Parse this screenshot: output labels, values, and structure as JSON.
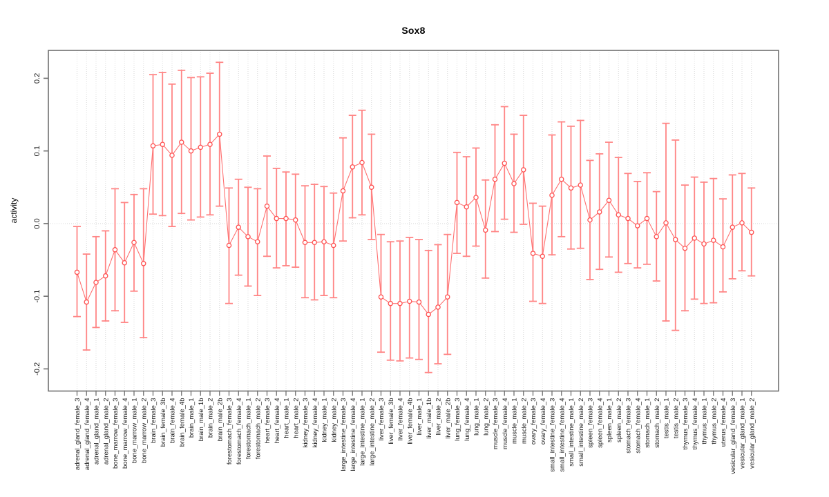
{
  "page": {
    "title": "Sox8"
  },
  "chart_data": {
    "type": "scatter",
    "subtype": "points_with_error_bars",
    "title": "Sox8",
    "xlabel": "",
    "ylabel": "activity",
    "legend": "none",
    "grid": "dotted vertical line per category; dotted horizontal line at 0",
    "ylim": [
      -0.2305,
      0.2384
    ],
    "yticks": [
      -0.2,
      -0.1,
      0.0,
      0.1,
      0.2
    ],
    "point_marker": "open-circle",
    "colors": {
      "error_bar": "#ff8585",
      "connector_line": "#ff7070",
      "point_stroke": "#ff4f4f",
      "grid_line": "#d9d9d9",
      "axis_box": "#707070",
      "tick_text": "#1a1a1a",
      "background": "#ffffff"
    },
    "categories": [
      "adrenal_gland_female_3",
      "adrenal_gland_female_4",
      "adrenal_gland_male_1",
      "adrenal_gland_male_2",
      "bone_marrow_female_3",
      "bone_marrow_female_4",
      "bone_marrow_male_1",
      "bone_marrow_male_2",
      "brain_female_3",
      "brain_female_3b",
      "brain_female_4",
      "brain_female_4b",
      "brain_male_1",
      "brain_male_1b",
      "brain_male_2",
      "brain_male_2b",
      "forestomach_female_3",
      "forestomach_female_4",
      "forestomach_male_1",
      "forestomach_male_2",
      "heart_female_3",
      "heart_female_4",
      "heart_male_1",
      "heart_male_2",
      "kidney_female_3",
      "kidney_female_4",
      "kidney_male_1",
      "kidney_male_2",
      "large_intestine_female_3",
      "large_intestine_female_4",
      "large_intestine_male_1",
      "large_intestine_male_2",
      "liver_female_3",
      "liver_female_3b",
      "liver_female_4",
      "liver_female_4b",
      "liver_male_1",
      "liver_male_1b",
      "liver_male_2",
      "liver_male_2b",
      "lung_female_3",
      "lung_female_4",
      "lung_male_1",
      "lung_male_2",
      "muscle_female_3",
      "muscle_female_4",
      "muscle_male_1",
      "muscle_male_2",
      "ovary_female_3",
      "ovary_female_4",
      "small_intestine_female_3",
      "small_intestine_female_4",
      "small_intestine_male_1",
      "small_intestine_male_2",
      "spleen_female_3",
      "spleen_female_4",
      "spleen_male_1",
      "spleen_male_2",
      "stomach_female_3",
      "stomach_female_4",
      "stomach_male_1",
      "stomach_male_2",
      "testis_male_1",
      "testis_male_2",
      "thymus_female_3",
      "thymus_female_4",
      "thymus_male_1",
      "thymus_male_2",
      "uterus_female_4",
      "vesicular_gland_female_3",
      "vesicular_gland_male_1",
      "vesicular_gland_male_2"
    ],
    "series": [
      {
        "name": "activity",
        "values": [
          -0.067,
          -0.108,
          -0.081,
          -0.072,
          -0.036,
          -0.054,
          -0.026,
          -0.055,
          0.107,
          0.109,
          0.094,
          0.112,
          0.1,
          0.105,
          0.109,
          0.123,
          -0.03,
          -0.005,
          -0.018,
          -0.025,
          0.024,
          0.007,
          0.007,
          0.005,
          -0.026,
          -0.026,
          -0.025,
          -0.03,
          0.045,
          0.078,
          0.084,
          0.05,
          -0.101,
          -0.11,
          -0.11,
          -0.107,
          -0.108,
          -0.125,
          -0.115,
          -0.101,
          0.029,
          0.023,
          0.036,
          -0.009,
          0.061,
          0.083,
          0.055,
          0.074,
          -0.041,
          -0.045,
          0.039,
          0.061,
          0.049,
          0.053,
          0.005,
          0.016,
          0.032,
          0.012,
          0.007,
          -0.003,
          0.007,
          -0.018,
          0.001,
          -0.022,
          -0.034,
          -0.02,
          -0.028,
          -0.023,
          -0.032,
          -0.005,
          0.001,
          -0.012
        ],
        "ci_lower": [
          -0.128,
          -0.174,
          -0.143,
          -0.134,
          -0.12,
          -0.136,
          -0.093,
          -0.157,
          0.013,
          0.011,
          -0.004,
          0.014,
          0.005,
          0.009,
          0.012,
          0.024,
          -0.11,
          -0.071,
          -0.086,
          -0.099,
          -0.045,
          -0.061,
          -0.058,
          -0.06,
          -0.102,
          -0.105,
          -0.099,
          -0.102,
          -0.024,
          0.008,
          0.012,
          -0.022,
          -0.177,
          -0.188,
          -0.189,
          -0.185,
          -0.187,
          -0.205,
          -0.193,
          -0.18,
          -0.041,
          -0.045,
          -0.031,
          -0.075,
          -0.011,
          0.006,
          -0.012,
          -0.001,
          -0.107,
          -0.11,
          -0.043,
          -0.018,
          -0.035,
          -0.034,
          -0.077,
          -0.063,
          -0.046,
          -0.067,
          -0.055,
          -0.061,
          -0.056,
          -0.079,
          -0.134,
          -0.147,
          -0.12,
          -0.104,
          -0.11,
          -0.109,
          -0.094,
          -0.076,
          -0.065,
          -0.072
        ],
        "ci_upper": [
          -0.004,
          -0.042,
          -0.018,
          -0.01,
          0.048,
          0.029,
          0.04,
          0.048,
          0.205,
          0.208,
          0.192,
          0.211,
          0.201,
          0.202,
          0.207,
          0.222,
          0.049,
          0.061,
          0.05,
          0.048,
          0.093,
          0.076,
          0.071,
          0.068,
          0.052,
          0.054,
          0.051,
          0.042,
          0.118,
          0.149,
          0.156,
          0.123,
          -0.015,
          -0.025,
          -0.024,
          -0.019,
          -0.022,
          -0.037,
          -0.029,
          -0.015,
          0.098,
          0.092,
          0.104,
          0.06,
          0.136,
          0.161,
          0.123,
          0.149,
          0.028,
          0.024,
          0.122,
          0.14,
          0.134,
          0.142,
          0.087,
          0.096,
          0.112,
          0.091,
          0.069,
          0.058,
          0.07,
          0.044,
          0.138,
          0.115,
          0.053,
          0.064,
          0.057,
          0.062,
          0.034,
          0.067,
          0.069,
          0.049
        ]
      }
    ]
  }
}
